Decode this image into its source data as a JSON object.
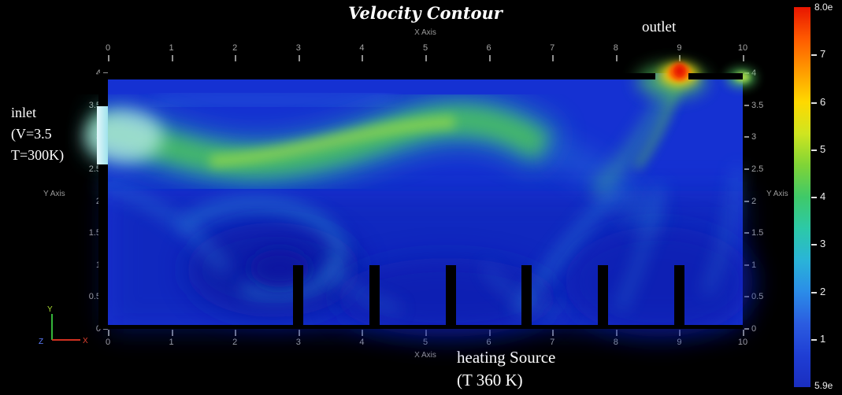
{
  "title": "Velocity Contour",
  "annotations": {
    "outlet": "outlet",
    "inlet": [
      "inlet",
      "(V=3.5",
      "T=300K)"
    ],
    "heating": [
      "heating Source",
      "(T 360 K)"
    ]
  },
  "axes": {
    "x_label": "X Axis",
    "y_label": "Y Axis",
    "x_ticks": [
      "0",
      "1",
      "2",
      "3",
      "4",
      "5",
      "6",
      "7",
      "8",
      "9",
      "10"
    ],
    "y_ticks": [
      "4",
      "3.5",
      "3",
      "2.5",
      "2",
      "1.5",
      "1",
      "0.5",
      "0"
    ]
  },
  "colorbar": {
    "max_label": "8.0e",
    "min_label": "5.9e",
    "tick_labels": [
      "7",
      "6",
      "5",
      "4",
      "3",
      "2",
      "1"
    ],
    "gradient_top_to_bottom": [
      "#e81500",
      "#ff5a00",
      "#ff9a00",
      "#ffd900",
      "#cfe520",
      "#7fd437",
      "#3fc969",
      "#2cc9a8",
      "#2ab4d8",
      "#2b8ce8",
      "#2b5ce0",
      "#1f3ed4",
      "#1a2ec0"
    ]
  },
  "orientation_axes": {
    "x": "X",
    "y": "Y",
    "z": "Z"
  },
  "chart_data": {
    "type": "heatmap",
    "subtype": "CFD velocity contour",
    "title": "Velocity Contour",
    "xlabel": "X Axis",
    "ylabel": "Y Axis",
    "xlim": [
      0,
      10
    ],
    "ylim": [
      0,
      4
    ],
    "colorbar": {
      "max_label": "8.0e",
      "min_label": "5.9e",
      "tick_values": [
        7,
        6,
        5,
        4,
        3,
        2,
        1
      ],
      "orientation": "vertical-right"
    },
    "geometry": {
      "inlet": {
        "x": 0,
        "y_range": [
          2.55,
          3.5
        ],
        "label": "inlet (V=3.5 T=300K)"
      },
      "outlet": {
        "x_range": [
          8.6,
          9.15
        ],
        "y": 4,
        "label": "outlet"
      },
      "baffles_x": [
        3,
        4.2,
        5.4,
        6.6,
        7.8,
        9
      ],
      "baffle_y_range": [
        0,
        1
      ],
      "baffle_label": "heating Source (T 360 K)",
      "walls": [
        "top wall with outlet gap near x=9",
        "left wall with inlet gap y=2.55-3.5",
        "bottom wall"
      ]
    },
    "field_features": [
      {
        "name": "inlet-jet",
        "desc": "green/cyan high-velocity jet entering at left between y=2.5 and y=3.5, dipping then rising toward x=4-5 before diffusing",
        "approx_value": "3.5-4.5"
      },
      {
        "name": "outlet-jet",
        "desc": "red/orange maximum-velocity spot at the outlet gap near x=9, y=4",
        "approx_value": "7-8"
      },
      {
        "name": "right-edge-spot",
        "desc": "small green spot at right edge near y=3.9",
        "approx_value": "4-5"
      },
      {
        "name": "lower-left-vortex",
        "desc": "slow dark-blue recirculation vortex near x=2.3, y=1",
        "approx_value": "0-1"
      },
      {
        "name": "background",
        "desc": "bulk of domain is slow blue flow with faint cyan streaks between baffles",
        "approx_value": "0.5-2"
      }
    ]
  }
}
